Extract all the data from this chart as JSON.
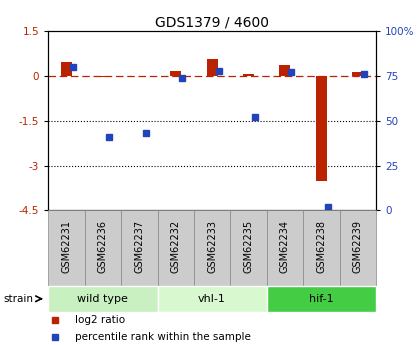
{
  "title": "GDS1379 / 4600",
  "samples": [
    "GSM62231",
    "GSM62236",
    "GSM62237",
    "GSM62232",
    "GSM62233",
    "GSM62235",
    "GSM62234",
    "GSM62238",
    "GSM62239"
  ],
  "log2_ratio": [
    0.45,
    -0.05,
    0.0,
    0.15,
    0.55,
    0.05,
    0.35,
    -3.5,
    0.12
  ],
  "percentile_rank": [
    80,
    41,
    43,
    74,
    78,
    52,
    77,
    2,
    76
  ],
  "groups": [
    {
      "label": "wild type",
      "start": 0,
      "end": 3,
      "color": "#c8f0c0"
    },
    {
      "label": "vhl-1",
      "start": 3,
      "end": 6,
      "color": "#d8f8d0"
    },
    {
      "label": "hif-1",
      "start": 6,
      "end": 9,
      "color": "#44cc44"
    }
  ],
  "ylim_left": [
    -4.5,
    1.5
  ],
  "ylim_right": [
    0,
    100
  ],
  "yticks_left": [
    1.5,
    0,
    -1.5,
    -3,
    -4.5
  ],
  "yticks_right": [
    100,
    75,
    50,
    25,
    0
  ],
  "dotted_lines": [
    -1.5,
    -3
  ],
  "bar_width": 0.3,
  "red_color": "#bb2200",
  "blue_color": "#2244bb",
  "sample_box_color": "#cccccc",
  "sample_box_edge": "#888888"
}
